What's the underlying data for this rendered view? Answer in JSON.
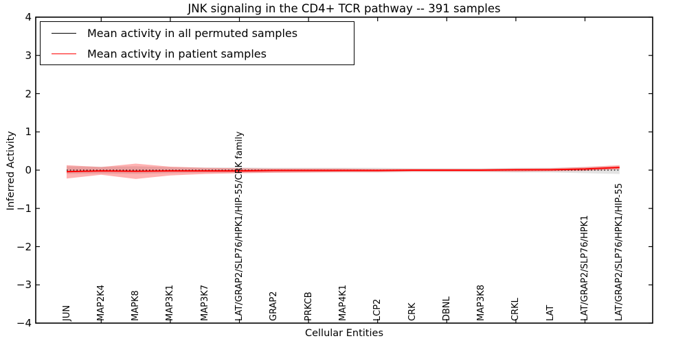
{
  "chart_data": {
    "type": "line",
    "title": "JNK signaling in the CD4+ TCR pathway -- 391 samples",
    "xlabel": "Cellular Entities",
    "ylabel": "Inferred Activity",
    "ylim": [
      -4,
      4
    ],
    "ytick_values": [
      4,
      3,
      2,
      1,
      0,
      -1,
      -2,
      -3,
      -4
    ],
    "ytick_labels": [
      "4",
      "3",
      "2",
      "1",
      "0",
      "−1",
      "−2",
      "−3",
      "−4"
    ],
    "grid": false,
    "legend_position": "upper left",
    "categories": [
      "JUN",
      "MAP2K4",
      "MAPK8",
      "MAP3K1",
      "MAP3K7",
      "LAT/GRAP2/SLP76/HPK1/HIP-55/CRK family",
      "GRAP2",
      "PRKCB",
      "MAP4K1",
      "LCP2",
      "CRK",
      "DBNL",
      "MAP3K8",
      "CRKL",
      "LAT",
      "LAT/GRAP2/SLP76/HPK1",
      "LAT/GRAP2/SLP76/HPK1/HIP-55"
    ],
    "series": [
      {
        "name": "Mean activity in all permuted samples",
        "color": "#000000",
        "line_style": "dotted",
        "values": [
          0,
          0,
          0,
          0,
          0,
          0,
          0,
          0,
          0,
          0,
          0,
          0,
          0,
          0,
          0,
          0,
          0
        ],
        "band_color": "rgba(100,100,100,0.18)",
        "band_upper": [
          0.1,
          0.09,
          0.1,
          0.08,
          0.07,
          0.07,
          0.06,
          0.06,
          0.06,
          0.06,
          0.05,
          0.05,
          0.05,
          0.06,
          0.06,
          0.08,
          0.1
        ],
        "band_lower": [
          -0.1,
          -0.09,
          -0.1,
          -0.08,
          -0.07,
          -0.07,
          -0.06,
          -0.06,
          -0.06,
          -0.06,
          -0.05,
          -0.05,
          -0.05,
          -0.06,
          -0.06,
          -0.08,
          -0.1
        ]
      },
      {
        "name": "Mean activity in patient samples",
        "color": "#ff0000",
        "line_style": "solid",
        "values": [
          -0.04,
          -0.02,
          -0.03,
          -0.02,
          -0.02,
          -0.02,
          -0.01,
          -0.01,
          -0.01,
          -0.01,
          0,
          0,
          0,
          0.01,
          0.01,
          0.03,
          0.07
        ],
        "band_color": "rgba(255,0,0,0.30)",
        "band_upper": [
          0.13,
          0.08,
          0.17,
          0.09,
          0.06,
          0.05,
          0.04,
          0.04,
          0.04,
          0.03,
          0.03,
          0.03,
          0.03,
          0.04,
          0.05,
          0.08,
          0.13
        ],
        "band_lower": [
          -0.22,
          -0.12,
          -0.23,
          -0.14,
          -0.1,
          -0.08,
          -0.07,
          -0.06,
          -0.05,
          -0.05,
          -0.04,
          -0.04,
          -0.04,
          -0.04,
          -0.03,
          -0.02,
          0.02
        ]
      }
    ]
  }
}
